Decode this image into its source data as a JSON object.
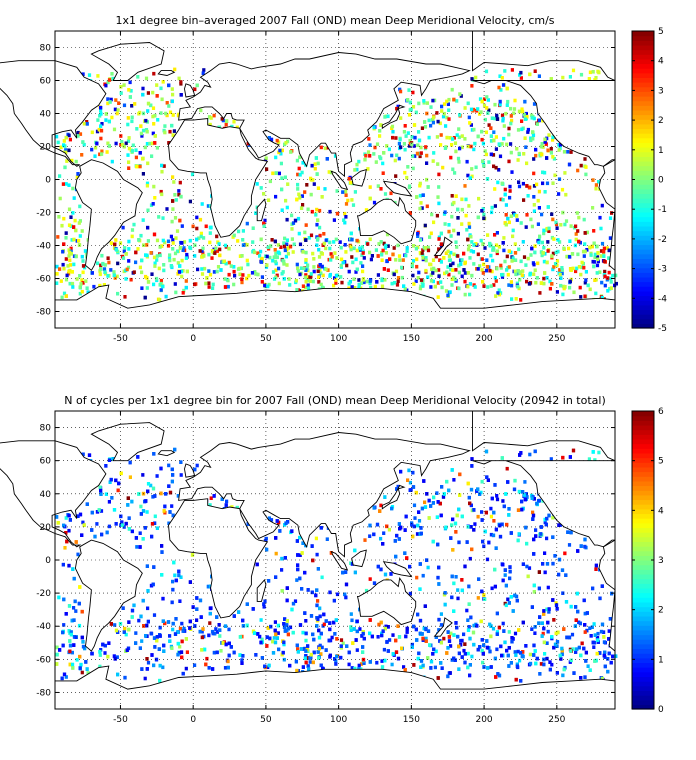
{
  "panels": [
    {
      "title": "1x1 degree bin–averaged 2007 Fall (OND) mean Deep Meridional Velocity, cm/s",
      "x_ticks": [
        "-50",
        "0",
        "50",
        "100",
        "150",
        "200",
        "250"
      ],
      "x_tick_values": [
        -50,
        0,
        50,
        100,
        150,
        200,
        250
      ],
      "y_ticks": [
        "80",
        "60",
        "40",
        "20",
        "0",
        "-20",
        "-40",
        "-60",
        "-80"
      ],
      "y_tick_values": [
        80,
        60,
        40,
        20,
        0,
        -20,
        -40,
        -60,
        -80
      ],
      "xlim": [
        -95,
        290
      ],
      "ylim": [
        -90,
        90
      ],
      "colorbar_ticks": [
        "5",
        "4",
        "3",
        "2",
        "1",
        "0",
        "-1",
        "-2",
        "-3",
        "-4",
        "-5"
      ],
      "colorbar_tick_values": [
        5,
        4,
        3,
        2,
        1,
        0,
        -1,
        -2,
        -3,
        -4,
        -5
      ],
      "clim": [
        -5,
        5
      ],
      "colormap": "jet",
      "grid": true,
      "grid_style": "dotted"
    },
    {
      "title": "N of cycles per 1x1 degree bin for 2007 Fall (OND) mean Deep Meridional Velocity (20942 in total)",
      "x_ticks": [
        "-50",
        "0",
        "50",
        "100",
        "150",
        "200",
        "250"
      ],
      "x_tick_values": [
        -50,
        0,
        50,
        100,
        150,
        200,
        250
      ],
      "y_ticks": [
        "80",
        "60",
        "40",
        "20",
        "0",
        "-20",
        "-40",
        "-60",
        "-80"
      ],
      "y_tick_values": [
        80,
        60,
        40,
        20,
        0,
        -20,
        -40,
        -60,
        -80
      ],
      "xlim": [
        -95,
        290
      ],
      "ylim": [
        -90,
        90
      ],
      "colorbar_ticks": [
        "6",
        "5",
        "4",
        "3",
        "2",
        "1",
        "0"
      ],
      "colorbar_tick_values": [
        6,
        5,
        4,
        3,
        2,
        1,
        0
      ],
      "clim": [
        0,
        6
      ],
      "colormap": "jet",
      "grid": true,
      "grid_style": "dotted"
    }
  ]
}
